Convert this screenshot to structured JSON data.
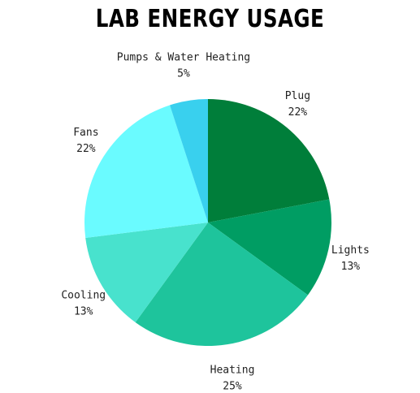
{
  "chart_data": {
    "type": "pie",
    "title": "LAB ENERGY USAGE",
    "slices": [
      {
        "label": "Plug",
        "value": 22,
        "value_label": "22%",
        "color": "#007e3a"
      },
      {
        "label": "Lights",
        "value": 13,
        "value_label": "13%",
        "color": "#009d63"
      },
      {
        "label": "Heating",
        "value": 25,
        "value_label": "25%",
        "color": "#1ec49c"
      },
      {
        "label": "Cooling",
        "value": 13,
        "value_label": "13%",
        "color": "#48e2cd"
      },
      {
        "label": "Fans",
        "value": 22,
        "value_label": "22%",
        "color": "#6afbff"
      },
      {
        "label": "Pumps & Water Heating",
        "value": 5,
        "value_label": "5%",
        "color": "#39d0ee"
      }
    ],
    "start_angle": "12 o'clock",
    "direction": "clockwise",
    "legend": "none"
  }
}
